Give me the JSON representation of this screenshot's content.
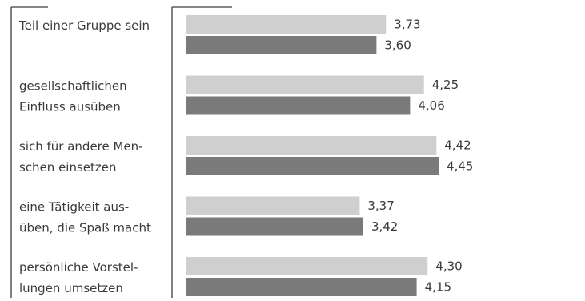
{
  "chart_data": {
    "type": "bar",
    "orientation": "horizontal",
    "categories": [
      [
        "Teil einer Gruppe sein"
      ],
      [
        "gesellschaftlichen",
        "Einfluss ausüben"
      ],
      [
        "sich für andere Men-",
        "schen einsetzen"
      ],
      [
        "eine Tätigkeit aus-",
        "üben, die Spaß macht"
      ],
      [
        "persönliche Vorstel-",
        "lungen umsetzen"
      ]
    ],
    "series": [
      {
        "color": "#cfcfcf",
        "values": [
          3.73,
          4.25,
          4.42,
          3.37,
          4.3
        ],
        "labels": [
          "3,73",
          "4,25",
          "4,42",
          "3,37",
          "4,30"
        ]
      },
      {
        "color": "#7a7a7a",
        "values": [
          3.6,
          4.06,
          4.45,
          3.42,
          4.15
        ],
        "labels": [
          "3,60",
          "4,06",
          "4,45",
          "3,42",
          "4,15"
        ]
      }
    ],
    "xlim": [
      1,
      4.6
    ],
    "grid": false,
    "legend": "none"
  },
  "colors": {
    "axis": "#3c3c3c",
    "text": "#3a3a3a"
  }
}
